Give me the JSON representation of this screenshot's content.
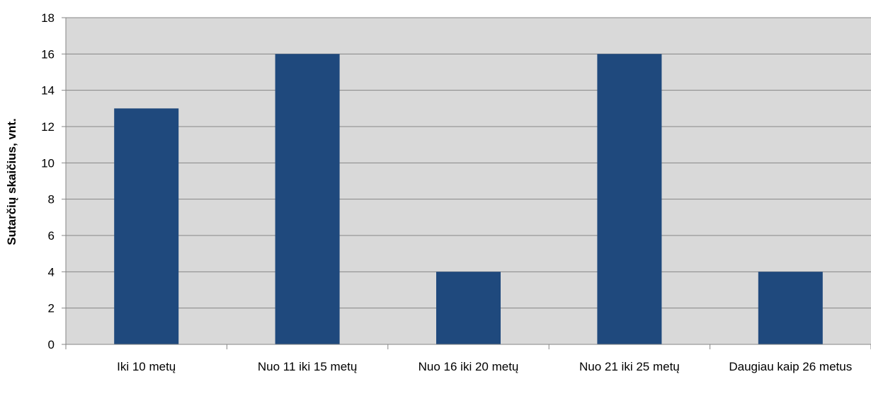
{
  "chart_data": {
    "type": "bar",
    "categories": [
      "Iki 10 metų",
      "Nuo 11 iki 15 metų",
      "Nuo 16 iki 20 metų",
      "Nuo 21 iki 25 metų",
      "Daugiau kaip 26 metus"
    ],
    "values": [
      13,
      16,
      4,
      16,
      4
    ],
    "title": "",
    "xlabel": "",
    "ylabel": "Sutarčių skaičius, vnt.",
    "ylim": [
      0,
      18
    ],
    "yticks": [
      0,
      2,
      4,
      6,
      8,
      10,
      12,
      14,
      16,
      18
    ],
    "grid": true,
    "legend": "none",
    "colors": {
      "bar": "#1f497d",
      "plot_background": "#d9d9d9",
      "gridline": "#868686",
      "axis": "#868686"
    }
  }
}
